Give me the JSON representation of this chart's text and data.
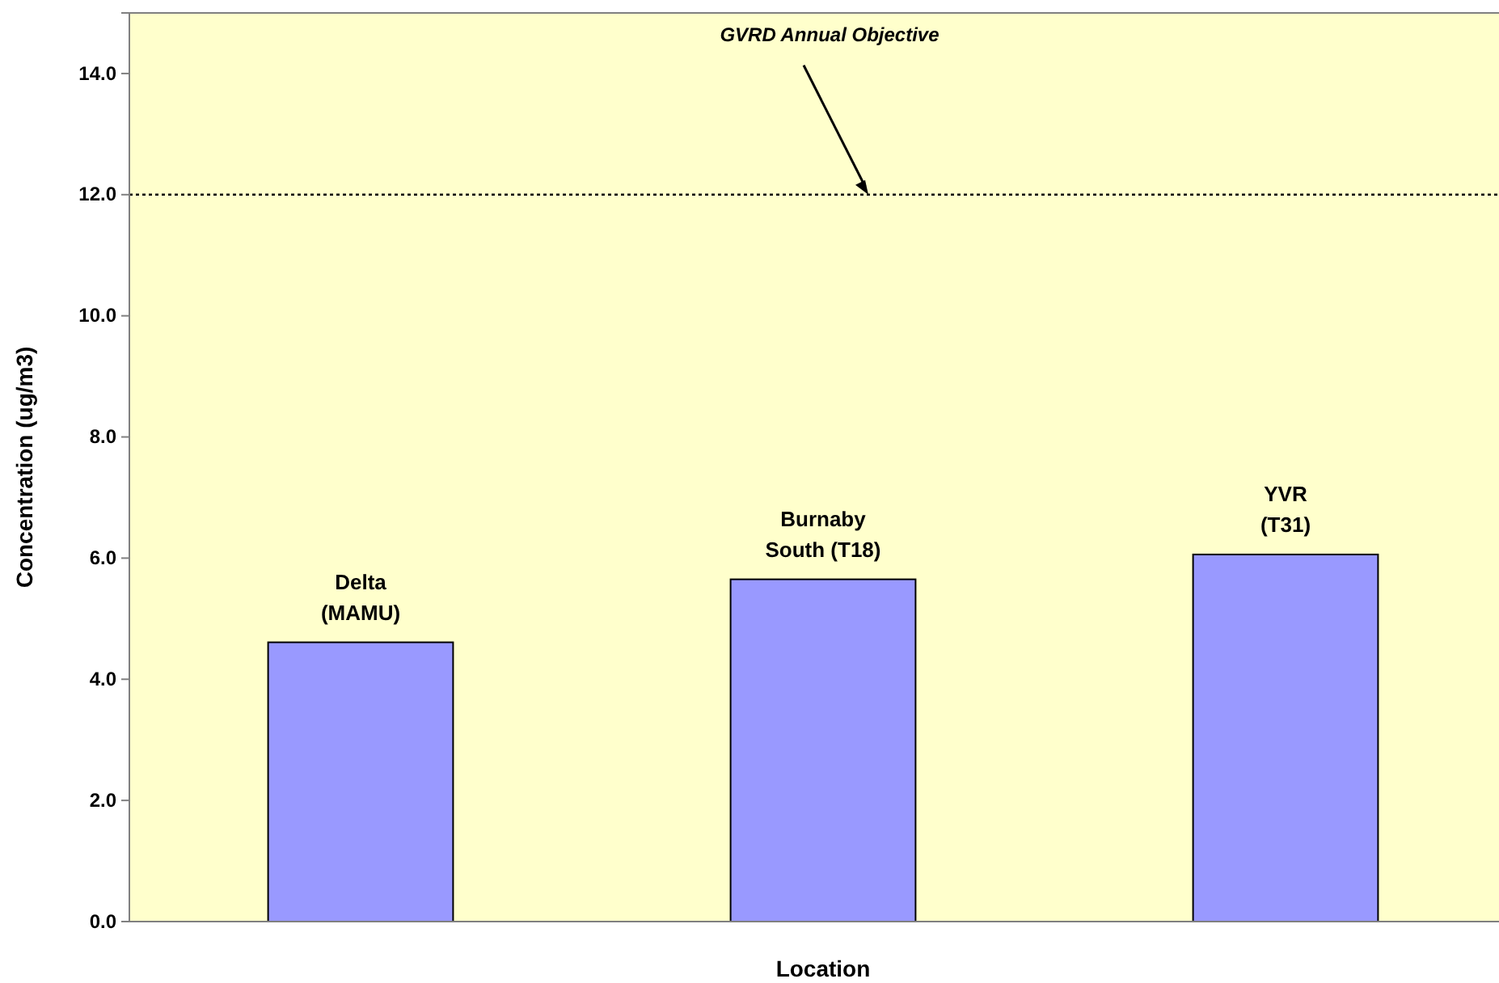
{
  "chart_data": {
    "type": "bar",
    "xlabel": "Location",
    "ylabel": "Concentration (ug/m3)",
    "categories": [
      "Delta\n(MAMU)",
      "Burnaby\nSouth (T18)",
      "YVR\n(T31)"
    ],
    "values": [
      4.61,
      5.65,
      6.06
    ],
    "color": "#9999ff",
    "ylim": [
      0,
      15
    ],
    "yticks": [
      {
        "value": 0,
        "label": "0.0"
      },
      {
        "value": 2,
        "label": "2.0"
      },
      {
        "value": 4,
        "label": "4.0"
      },
      {
        "value": 6,
        "label": "6.0"
      },
      {
        "value": 8,
        "label": "8.0"
      },
      {
        "value": 10,
        "label": "10.0"
      },
      {
        "value": 12,
        "label": "12.0"
      },
      {
        "value": 14,
        "label": "14.0"
      }
    ],
    "ref_lines": [
      {
        "axis": "y",
        "value": 12,
        "label": "GVRD Annual Objective",
        "line_style": "dotted",
        "color": "#000000"
      }
    ],
    "grid": false
  }
}
